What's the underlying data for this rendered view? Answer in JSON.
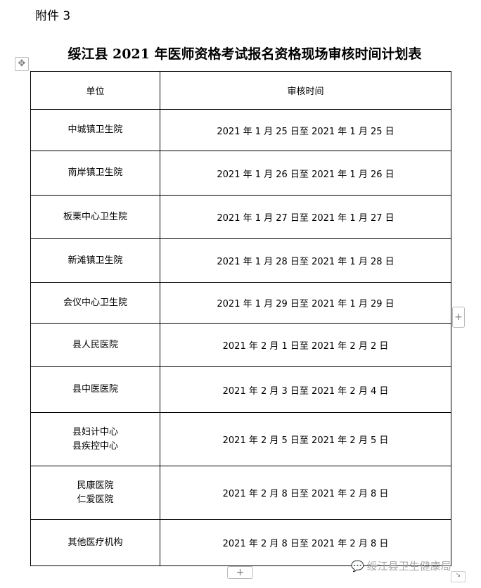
{
  "attachment": "附件 3",
  "title": "绥江县 2021 年医师资格考试报名资格现场审核时间计划表",
  "table": {
    "headers": [
      "单位",
      "审核时间"
    ],
    "rows": [
      {
        "unit": [
          "中城镇卫生院"
        ],
        "time": "2021 年 1 月 25 日至 2021 年 1 月 25 日"
      },
      {
        "unit": [
          "南岸镇卫生院"
        ],
        "time": "2021 年 1 月 26 日至 2021 年 1 月 26 日"
      },
      {
        "unit": [
          "板栗中心卫生院"
        ],
        "time": "2021 年 1 月 27 日至 2021 年 1 月 27 日"
      },
      {
        "unit": [
          "新滩镇卫生院"
        ],
        "time": "2021 年 1 月 28 日至 2021 年 1 月 28 日"
      },
      {
        "unit": [
          "会仪中心卫生院"
        ],
        "time": "2021 年 1 月 29 日至 2021 年 1 月 29 日"
      },
      {
        "unit": [
          "县人民医院"
        ],
        "time": "2021 年 2 月 1 日至 2021 年 2 月 2 日"
      },
      {
        "unit": [
          "县中医医院"
        ],
        "time": "2021 年 2 月 3 日至 2021 年 2 月 4 日"
      },
      {
        "unit": [
          "县妇计中心",
          "县疾控中心"
        ],
        "time": "2021 年 2 月 5 日至 2021 年 2 月 5 日"
      },
      {
        "unit": [
          "民康医院",
          "仁爱医院"
        ],
        "time": "2021 年 2 月 8 日至 2021 年 2 月 8 日"
      },
      {
        "unit": [
          "其他医疗机构"
        ],
        "time": "2021 年 2 月 8 日至 2021 年 2 月 8 日"
      }
    ]
  },
  "watermark": "绥江县卫生健康局",
  "controls": {
    "move_icon": "✥",
    "add_label": "+",
    "resize_icon": "↘"
  }
}
